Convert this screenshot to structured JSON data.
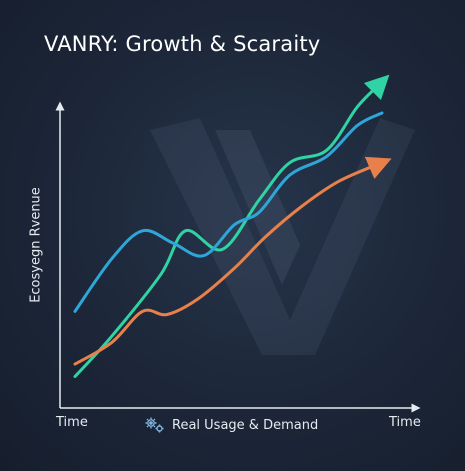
{
  "chart_data": {
    "type": "line",
    "title": "VANRY: Growth & Scaraity",
    "ylabel": "Ecosyegn Rvenue",
    "xlabel": "Real Usage & Demand",
    "xlabel_icon": "gears-icon",
    "x_tick_left": "Time",
    "x_tick_right": "Time",
    "xlim": [
      0,
      100
    ],
    "ylim": [
      0,
      100
    ],
    "grid": false,
    "legend": "none",
    "background_color": "#1c2638",
    "watermark": "V",
    "series": [
      {
        "color": "#2fd3a4",
        "arrow": true,
        "points": [
          [
            0,
            5
          ],
          [
            12,
            18
          ],
          [
            28,
            38
          ],
          [
            36,
            52
          ],
          [
            48,
            46
          ],
          [
            60,
            62
          ],
          [
            70,
            74
          ],
          [
            82,
            78
          ],
          [
            92,
            92
          ],
          [
            100,
            100
          ]
        ]
      },
      {
        "color": "#2fa6d8",
        "arrow": false,
        "points": [
          [
            0,
            26
          ],
          [
            12,
            43
          ],
          [
            22,
            52
          ],
          [
            32,
            48
          ],
          [
            42,
            44
          ],
          [
            52,
            54
          ],
          [
            60,
            58
          ],
          [
            70,
            70
          ],
          [
            82,
            76
          ],
          [
            92,
            86
          ],
          [
            100,
            90
          ]
        ]
      },
      {
        "color": "#e8804a",
        "arrow": true,
        "points": [
          [
            0,
            9
          ],
          [
            12,
            16
          ],
          [
            22,
            26
          ],
          [
            30,
            25
          ],
          [
            40,
            30
          ],
          [
            52,
            40
          ],
          [
            62,
            50
          ],
          [
            74,
            60
          ],
          [
            86,
            68
          ],
          [
            100,
            74
          ]
        ]
      }
    ]
  }
}
